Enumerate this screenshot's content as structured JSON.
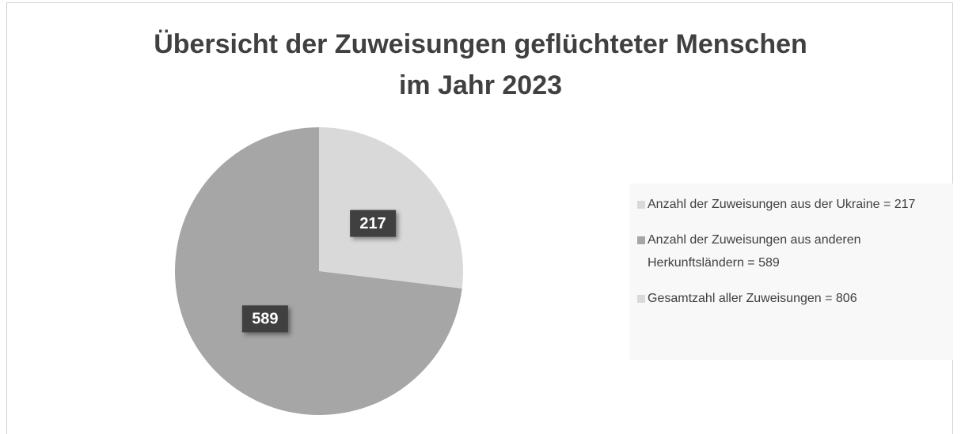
{
  "chart_data": {
    "type": "pie",
    "title": [
      "Übersicht der Zuweisungen geflüchteter Menschen",
      "im Jahr 2023"
    ],
    "categories": [
      "Anzahl der Zuweisungen aus der Ukraine = 217",
      "Anzahl der Zuweisungen aus anderen Herkunftsländern = 589",
      "Gesamtzahl aller Zuweisungen = 806"
    ],
    "values": [
      217,
      589,
      null
    ],
    "colors": [
      "#d9d9d9",
      "#a6a6a6",
      "#d9d9d9"
    ],
    "legend": "right"
  }
}
